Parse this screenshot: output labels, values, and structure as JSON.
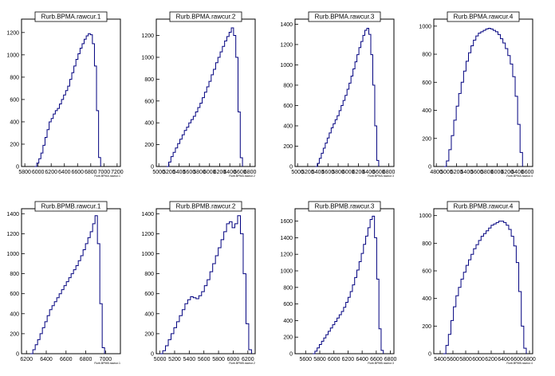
{
  "chart_data": [
    {
      "type": "histogram",
      "title": "Rurb.BPMA.rawcur.1",
      "xlabel": "Rurb.BPMA.rawcur.1",
      "x_ticks": [
        5800,
        6000,
        6200,
        6400,
        6600,
        6800,
        7000,
        7200
      ],
      "y_ticks": [
        0,
        200,
        400,
        600,
        800,
        1000,
        1200
      ],
      "xlim": [
        5750,
        7250
      ],
      "ylim": [
        0,
        1320
      ],
      "bin_edges": [
        5950,
        6950
      ],
      "values": [
        0,
        30,
        70,
        120,
        190,
        260,
        330,
        400,
        430,
        470,
        500,
        520,
        560,
        600,
        640,
        680,
        720,
        780,
        840,
        900,
        960,
        1010,
        1060,
        1100,
        1140,
        1170,
        1190,
        1180,
        1100,
        900,
        500,
        80
      ]
    },
    {
      "type": "histogram",
      "title": "Rurb.BPMA.rawcur.2",
      "xlabel": "Rurb.BPMA.rawcur.2",
      "x_ticks": [
        5000,
        5200,
        5400,
        5600,
        5800,
        6000,
        6200,
        6400,
        6600,
        6800
      ],
      "x_tick_labels": [
        "5000",
        "5200",
        "5400",
        "5600",
        "5800",
        "6000",
        "6200",
        "6400",
        "6600",
        "6800"
      ],
      "y_ticks": [
        0,
        200,
        400,
        600,
        800,
        1000,
        1200
      ],
      "xlim": [
        4950,
        6900
      ],
      "ylim": [
        0,
        1350
      ],
      "bin_edges": [
        5150,
        6650
      ],
      "values": [
        0,
        40,
        90,
        130,
        170,
        210,
        250,
        290,
        330,
        360,
        400,
        430,
        460,
        500,
        540,
        580,
        630,
        680,
        730,
        780,
        840,
        890,
        950,
        1000,
        1050,
        1100,
        1150,
        1190,
        1230,
        1270,
        1200,
        1000,
        500,
        80
      ]
    },
    {
      "type": "histogram",
      "title": "Rurb.BPMA.rawcur.3",
      "xlabel": "Rurb.BPMA.rawcur.3",
      "x_ticks": [
        5000,
        5200,
        5400,
        5600,
        5800,
        6000,
        6200,
        6400,
        6600,
        6800
      ],
      "x_tick_labels": [
        "5000",
        "5200",
        "5400",
        "5600",
        "5800",
        "6000",
        "6200",
        "6400",
        "6600",
        "6800"
      ],
      "y_ticks": [
        0,
        200,
        400,
        600,
        800,
        1000,
        1200,
        1400
      ],
      "xlim": [
        4950,
        6900
      ],
      "ylim": [
        0,
        1450
      ],
      "bin_edges": [
        5350,
        6600
      ],
      "values": [
        0,
        30,
        80,
        130,
        180,
        230,
        280,
        330,
        380,
        420,
        460,
        500,
        550,
        600,
        650,
        700,
        760,
        820,
        890,
        960,
        1030,
        1100,
        1170,
        1230,
        1290,
        1340,
        1360,
        1300,
        1100,
        800,
        400,
        60
      ]
    },
    {
      "type": "histogram",
      "title": "Rurb.BPMA.rawcur.4",
      "xlabel": "Rurb.BPMA.rawcur.4",
      "x_ticks": [
        4800,
        5000,
        5200,
        5400,
        5600,
        5800,
        6000,
        6200,
        6400,
        6600
      ],
      "x_tick_labels": [
        "4800",
        "5000",
        "5200",
        "5400",
        "5600",
        "5800",
        "6000",
        "6200",
        "6400",
        "6600"
      ],
      "y_ticks": [
        0,
        200,
        400,
        600,
        800,
        1000
      ],
      "xlim": [
        4750,
        6700
      ],
      "ylim": [
        0,
        1050
      ],
      "bin_edges": [
        4950,
        6500
      ],
      "values": [
        0,
        40,
        120,
        220,
        330,
        430,
        520,
        600,
        680,
        750,
        810,
        860,
        900,
        930,
        950,
        960,
        970,
        980,
        985,
        980,
        970,
        960,
        940,
        910,
        880,
        840,
        790,
        730,
        640,
        500,
        300,
        100
      ]
    },
    {
      "type": "histogram",
      "title": "Rurb.BPMB.rawcur.1",
      "xlabel": "Rurb.BPMB.rawcur.1",
      "x_ticks": [
        6200,
        6400,
        6600,
        6800,
        7000
      ],
      "y_ticks": [
        0,
        200,
        400,
        600,
        800,
        1000,
        1200,
        1400
      ],
      "xlim": [
        6150,
        7150
      ],
      "ylim": [
        0,
        1450
      ],
      "bin_edges": [
        6240,
        6990
      ],
      "values": [
        0,
        40,
        90,
        140,
        200,
        260,
        320,
        380,
        440,
        480,
        520,
        560,
        600,
        640,
        680,
        720,
        760,
        800,
        840,
        880,
        930,
        980,
        1040,
        1100,
        1160,
        1220,
        1300,
        1380,
        1100,
        500,
        60
      ]
    },
    {
      "type": "histogram",
      "title": "Rurb.BPMB.rawcur.2",
      "xlabel": "Rurb.BPMB.rawcur.2",
      "x_ticks": [
        5000,
        5200,
        5400,
        5600,
        5800,
        6000,
        6200
      ],
      "x_tick_labels": [
        "5000",
        "5200",
        "5400",
        "5600",
        "5800",
        "6000",
        "6200"
      ],
      "y_ticks": [
        0,
        200,
        400,
        600,
        800,
        1000,
        1200,
        1400
      ],
      "xlim": [
        4950,
        6300
      ],
      "ylim": [
        0,
        1450
      ],
      "bin_edges": [
        5000,
        6250
      ],
      "values": [
        0,
        30,
        80,
        140,
        200,
        260,
        320,
        380,
        440,
        500,
        540,
        570,
        560,
        550,
        580,
        620,
        680,
        740,
        820,
        900,
        980,
        1060,
        1140,
        1220,
        1300,
        1320,
        1260,
        1300,
        1380,
        1200,
        800,
        300,
        40
      ]
    },
    {
      "type": "histogram",
      "title": "Rurb.BPMB.rawcur.3",
      "xlabel": "Rurb.BPMB.rawcur.3",
      "x_ticks": [
        5600,
        5800,
        6000,
        6200,
        6400,
        6600,
        6800
      ],
      "x_tick_labels": [
        "5600",
        "5800",
        "6000",
        "6200",
        "6400",
        "6600",
        "6800"
      ],
      "y_ticks": [
        0,
        200,
        400,
        600,
        800,
        1000,
        1200,
        1400,
        1600
      ],
      "xlim": [
        5450,
        6850
      ],
      "ylim": [
        0,
        1750
      ],
      "bin_edges": [
        5700,
        6700
      ],
      "values": [
        0,
        30,
        70,
        110,
        150,
        190,
        230,
        270,
        310,
        350,
        390,
        430,
        470,
        510,
        560,
        620,
        680,
        750,
        830,
        920,
        1010,
        1110,
        1210,
        1320,
        1420,
        1520,
        1620,
        1660,
        1400,
        900,
        300,
        40
      ]
    },
    {
      "type": "histogram",
      "title": "Rurb.BPMB.rawcur.4",
      "xlabel": "Rurb.BPMB.rawcur.4",
      "x_ticks": [
        5400,
        5600,
        5800,
        6000,
        6200,
        6400,
        6600,
        6800
      ],
      "x_tick_labels": [
        "5400",
        "5600",
        "5800",
        "6000",
        "6200",
        "6400",
        "6600",
        "6800"
      ],
      "y_ticks": [
        0,
        200,
        400,
        600,
        800,
        1000
      ],
      "xlim": [
        5300,
        6850
      ],
      "ylim": [
        0,
        1050
      ],
      "bin_edges": [
        5450,
        6750
      ],
      "values": [
        0,
        60,
        140,
        240,
        340,
        420,
        480,
        540,
        590,
        640,
        680,
        720,
        760,
        790,
        820,
        850,
        870,
        890,
        910,
        930,
        940,
        950,
        960,
        960,
        950,
        930,
        900,
        850,
        780,
        660,
        450,
        200,
        40
      ]
    }
  ]
}
